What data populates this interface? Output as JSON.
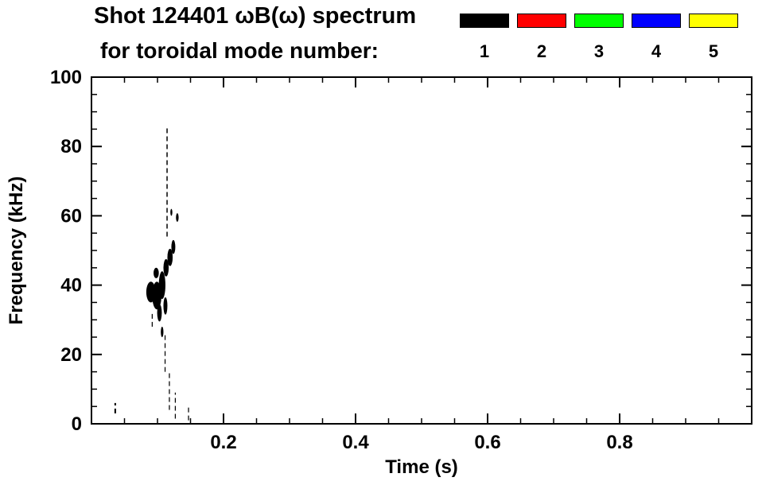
{
  "figure": {
    "background": "#ffffff",
    "frame_color": "#000000"
  },
  "chart_data": {
    "type": "scatter",
    "subtype": "magnetic-mode-spectrogram",
    "title": "Shot 124401 ωB(ω) spectrum",
    "subtitle": "for toroidal mode number:",
    "xlabel": "Time (s)",
    "ylabel": "Frequency (kHz)",
    "xlim": [
      0.0,
      1.0
    ],
    "ylim": [
      0,
      100
    ],
    "x_major_ticks": [
      0.2,
      0.4,
      0.6,
      0.8
    ],
    "x_tick_labels": [
      "0.2",
      "0.4",
      "0.6",
      "0.8"
    ],
    "x_minor_step": 0.05,
    "y_major_ticks": [
      0,
      20,
      40,
      60,
      80,
      100
    ],
    "y_tick_labels": [
      "0",
      "20",
      "40",
      "60",
      "80",
      "100"
    ],
    "y_minor_step": 5,
    "grid": false,
    "frame": true,
    "legend": {
      "position": "top-right",
      "entries": [
        {
          "label": "1",
          "color": "#000000"
        },
        {
          "label": "2",
          "color": "#ff0000"
        },
        {
          "label": "3",
          "color": "#00ff00"
        },
        {
          "label": "4",
          "color": "#0000ff"
        },
        {
          "label": "5",
          "color": "#ffff00"
        }
      ]
    },
    "series": [
      {
        "name": "toroidal mode n=1",
        "color": "#000000",
        "blob_format": "[time_s, freq_kHz, width_s, height_kHz]",
        "blobs": [
          [
            0.09,
            38.0,
            0.014,
            6.0
          ],
          [
            0.099,
            37.0,
            0.014,
            8.0
          ],
          [
            0.107,
            40.0,
            0.01,
            8.0
          ],
          [
            0.103,
            32.0,
            0.007,
            5.0
          ],
          [
            0.112,
            34.0,
            0.006,
            5.0
          ],
          [
            0.113,
            45.0,
            0.008,
            5.0
          ],
          [
            0.119,
            48.0,
            0.008,
            5.0
          ],
          [
            0.124,
            51.0,
            0.006,
            4.0
          ],
          [
            0.098,
            43.5,
            0.008,
            3.0
          ],
          [
            0.13,
            59.5,
            0.004,
            2.5
          ],
          [
            0.121,
            61.0,
            0.003,
            2.0
          ],
          [
            0.107,
            26.5,
            0.004,
            3.0
          ]
        ],
        "streak_format": "[time_s, freq_start_kHz, freq_end_kHz, width_s]",
        "streaks": [
          [
            0.1145,
            54.0,
            86.0,
            0.0018
          ],
          [
            0.1115,
            15.0,
            26.0,
            0.0015
          ],
          [
            0.118,
            4.0,
            15.0,
            0.0015
          ],
          [
            0.127,
            1.5,
            9.0,
            0.0015
          ],
          [
            0.147,
            1.0,
            5.0,
            0.0015
          ],
          [
            0.036,
            3.0,
            6.0,
            0.0025
          ],
          [
            0.092,
            28.0,
            32.0,
            0.0015
          ]
        ]
      },
      {
        "name": "toroidal mode n=2",
        "color": "#ff0000",
        "blobs": [],
        "streaks": []
      },
      {
        "name": "toroidal mode n=3",
        "color": "#00ff00",
        "blobs": [],
        "streaks": []
      },
      {
        "name": "toroidal mode n=4",
        "color": "#0000ff",
        "blobs": [],
        "streaks": []
      },
      {
        "name": "toroidal mode n=5",
        "color": "#ffff00",
        "blobs": [],
        "streaks": []
      }
    ]
  }
}
